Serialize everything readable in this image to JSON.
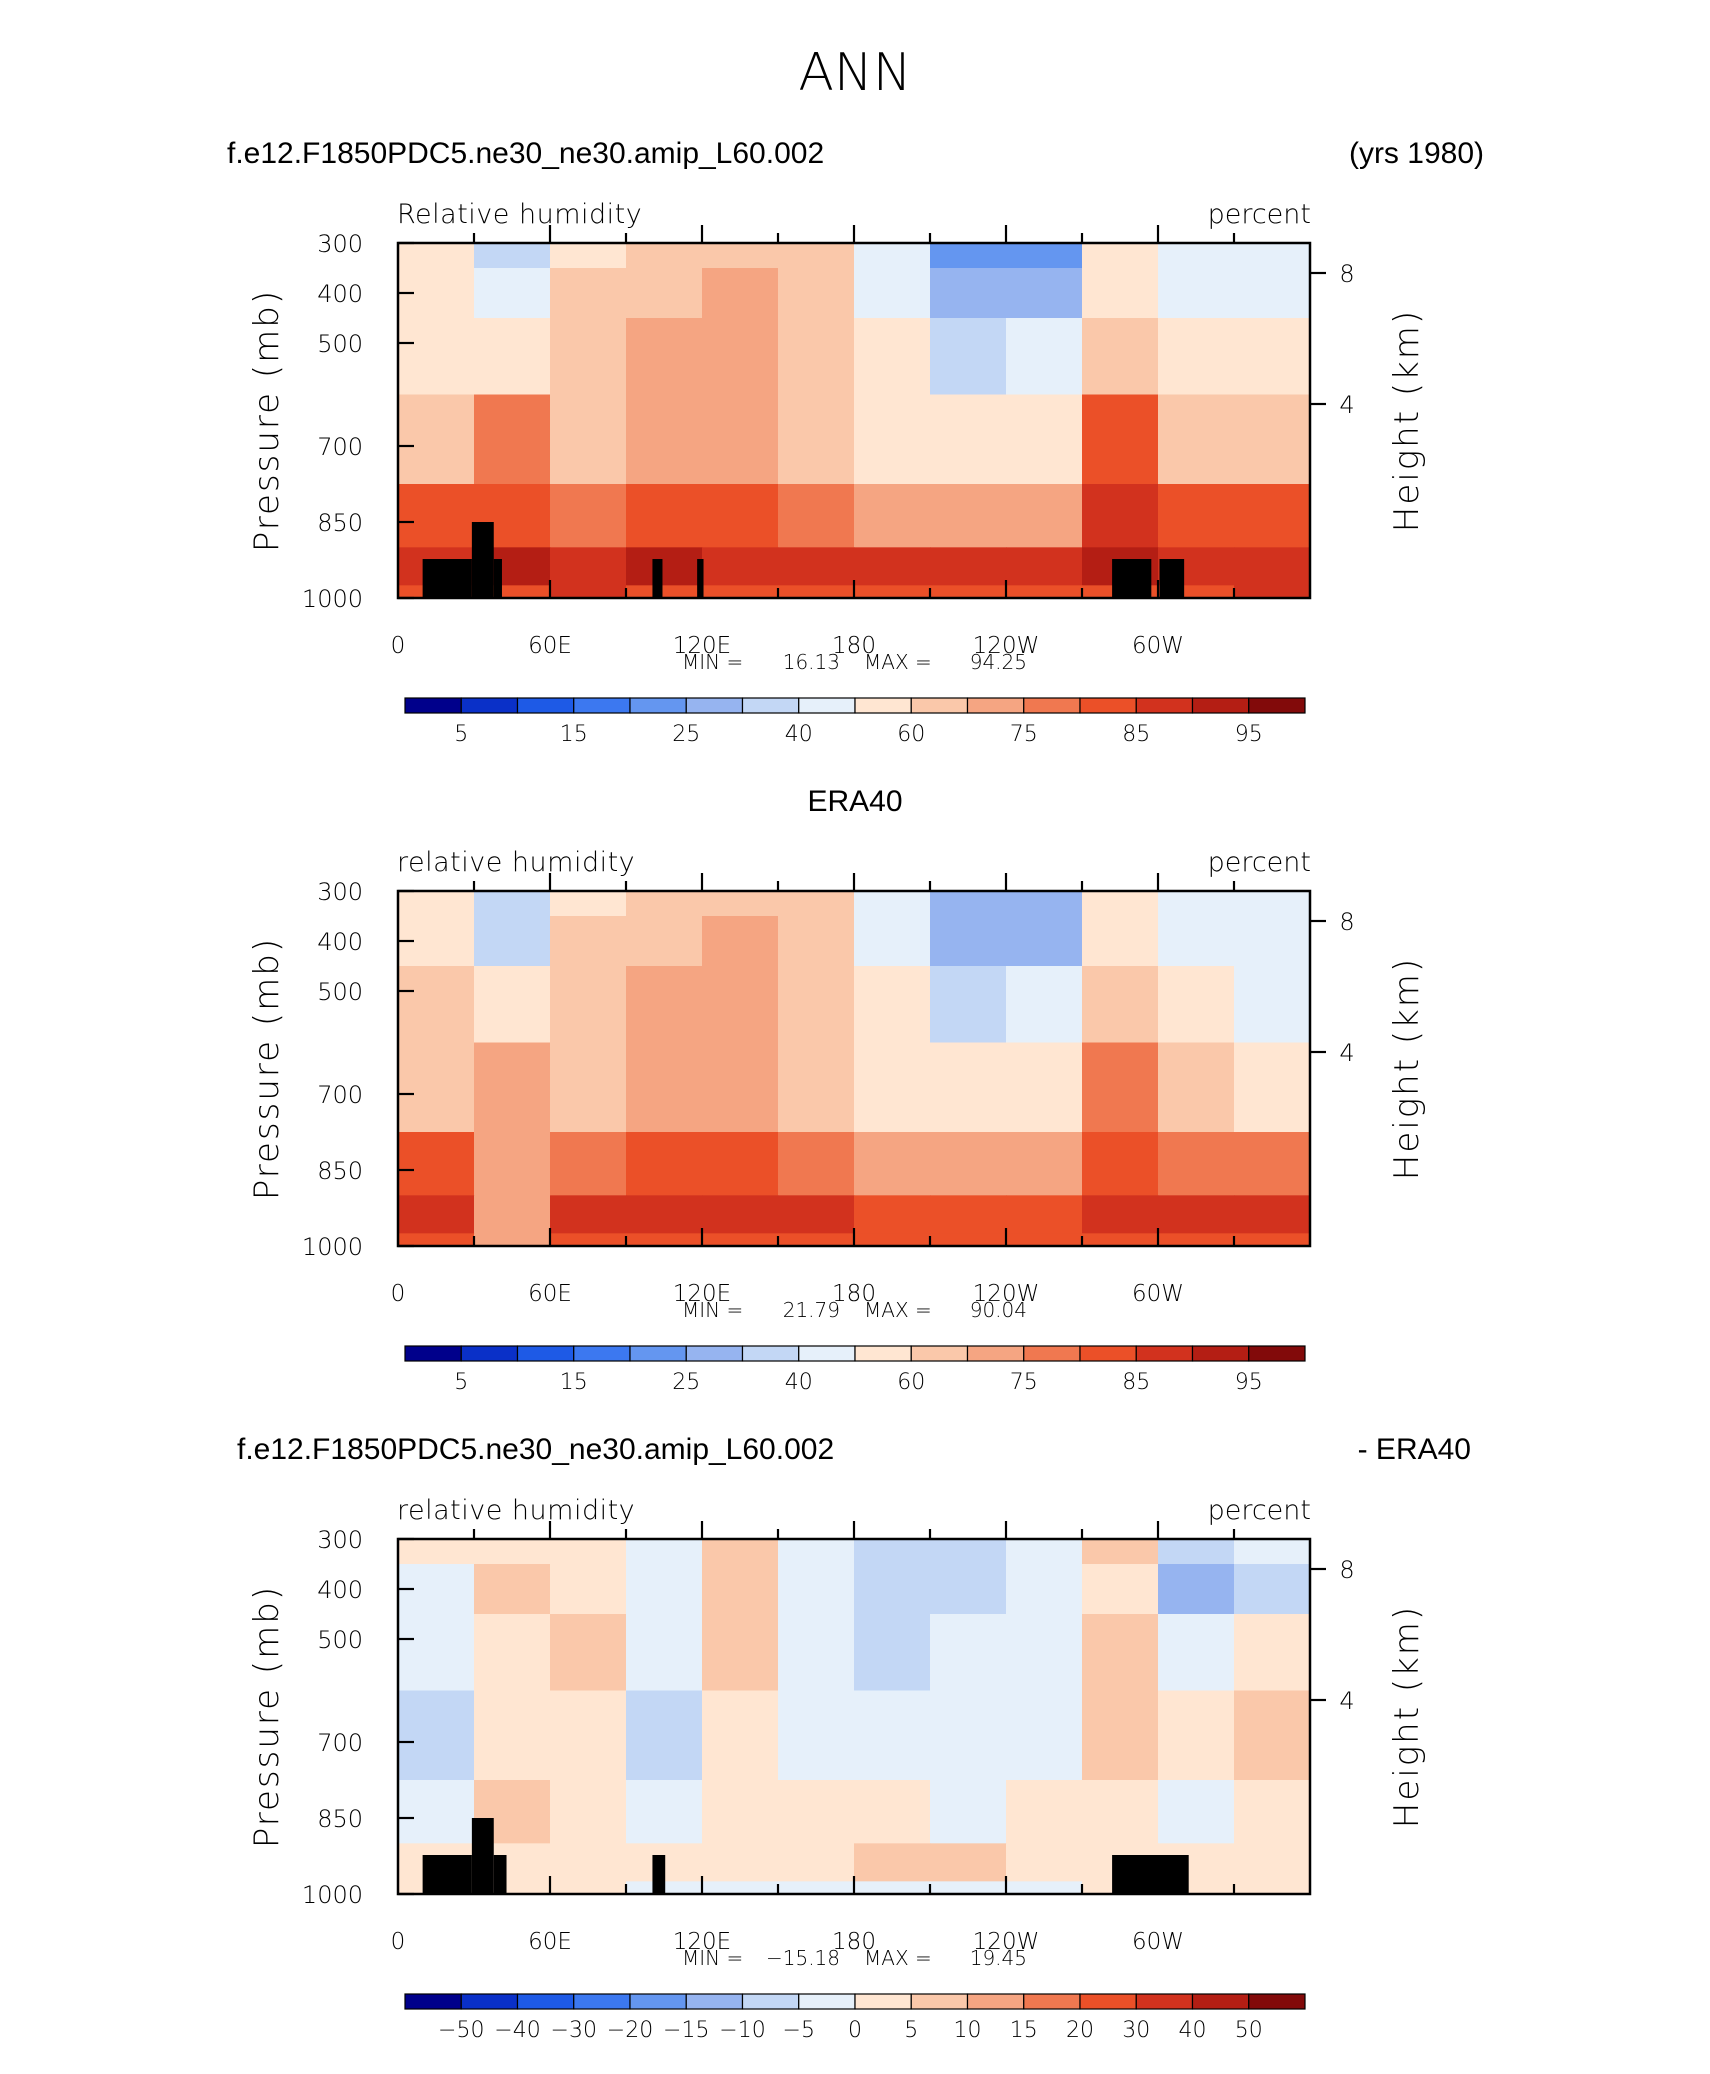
{
  "page_title": "ANN",
  "panels": [
    {
      "id": "model",
      "header_left": "f.e12.F1850PDC5.ne30_ne30.amip_L60.002",
      "header_right": "(yrs 1980)",
      "var_label": "Relative humidity",
      "units": "percent",
      "stats": {
        "min_label": "MIN =",
        "min_value": "16.13",
        "max_label": "MAX =",
        "max_value": "94.25"
      }
    },
    {
      "id": "obs",
      "header_center": "ERA40",
      "var_label": "relative humidity",
      "units": "percent",
      "stats": {
        "min_label": "MIN =",
        "min_value": "21.79",
        "max_label": "MAX =",
        "max_value": "90.04"
      }
    },
    {
      "id": "diff",
      "header_left": "f.e12.F1850PDC5.ne30_ne30.amip_L60.002",
      "header_right": "- ERA40",
      "var_label": "relative humidity",
      "units": "percent",
      "stats": {
        "min_label": "MIN =",
        "min_value": "−15.18",
        "max_label": "MAX =",
        "max_value": "19.45"
      }
    }
  ],
  "axes": {
    "x_ticks": [
      "0",
      "60E",
      "120E",
      "180",
      "120W",
      "60W"
    ],
    "y_left_label": "Pressure (mb)",
    "y_left_ticks": [
      "300",
      "400",
      "500",
      "700",
      "850",
      "1000"
    ],
    "y_right_label": "Height (km)",
    "y_right_ticks": [
      "8",
      "4"
    ]
  },
  "colorbars": {
    "rh": {
      "labels": [
        "5",
        "15",
        "25",
        "40",
        "60",
        "75",
        "85",
        "95"
      ],
      "colors": [
        "#00008B",
        "#0A30C8",
        "#1E5AE6",
        "#3C78F0",
        "#6496F0",
        "#96B4F0",
        "#C3D7F5",
        "#E6F0FA",
        "#FFE6D2",
        "#FAC8AA",
        "#F5A582",
        "#F07850",
        "#EB5028",
        "#D2321E",
        "#B41E14",
        "#820A0A"
      ]
    },
    "diff": {
      "labels": [
        "−50",
        "−40",
        "−30",
        "−20",
        "−15",
        "−10",
        "−5",
        "0",
        "5",
        "10",
        "15",
        "20",
        "30",
        "40",
        "50"
      ],
      "colors": [
        "#00008B",
        "#0A30C8",
        "#1E5AE6",
        "#3C78F0",
        "#6496F0",
        "#96B4F0",
        "#C3D7F5",
        "#E6F0FA",
        "#FFE6D2",
        "#FAC8AA",
        "#F5A582",
        "#F07850",
        "#EB5028",
        "#D2321E",
        "#B41E14",
        "#820A0A"
      ]
    }
  },
  "chart_data": [
    {
      "type": "heatmap",
      "title": "Relative humidity",
      "units": "percent",
      "x": [
        "0",
        "30E",
        "60E",
        "90E",
        "120E",
        "150E",
        "180",
        "150W",
        "120W",
        "90W",
        "60W",
        "30W"
      ],
      "y": [
        300,
        400,
        500,
        700,
        850,
        950,
        1000
      ],
      "z": [
        [
          55,
          35,
          58,
          62,
          66,
          62,
          40,
          20,
          22,
          52,
          45,
          40
        ],
        [
          50,
          42,
          60,
          68,
          72,
          66,
          42,
          26,
          28,
          58,
          48,
          42
        ],
        [
          58,
          55,
          62,
          70,
          74,
          68,
          50,
          38,
          40,
          60,
          58,
          56
        ],
        [
          66,
          76,
          62,
          72,
          72,
          66,
          58,
          52,
          55,
          80,
          66,
          66
        ],
        [
          80,
          82,
          78,
          82,
          80,
          78,
          74,
          72,
          74,
          86,
          80,
          80
        ],
        [
          88,
          90,
          88,
          90,
          88,
          88,
          86,
          86,
          86,
          92,
          88,
          88
        ],
        [
          84,
          84,
          86,
          84,
          84,
          84,
          84,
          84,
          84,
          84,
          84,
          86
        ]
      ],
      "min": 16.13,
      "max": 94.25,
      "ylim": [
        1000,
        300
      ]
    },
    {
      "type": "heatmap",
      "title": "relative humidity",
      "units": "percent",
      "x": [
        "0",
        "30E",
        "60E",
        "90E",
        "120E",
        "150E",
        "180",
        "150W",
        "120W",
        "90W",
        "60W",
        "30W"
      ],
      "y": [
        300,
        400,
        500,
        700,
        850,
        950,
        1000
      ],
      "z": [
        [
          55,
          30,
          58,
          66,
          68,
          64,
          42,
          26,
          28,
          54,
          46,
          42
        ],
        [
          52,
          32,
          60,
          68,
          70,
          66,
          44,
          28,
          28,
          58,
          48,
          40
        ],
        [
          60,
          50,
          62,
          70,
          72,
          68,
          50,
          38,
          40,
          62,
          56,
          44
        ],
        [
          68,
          70,
          62,
          72,
          72,
          66,
          58,
          52,
          55,
          78,
          64,
          58
        ],
        [
          80,
          72,
          78,
          82,
          80,
          78,
          74,
          72,
          74,
          84,
          78,
          76
        ],
        [
          86,
          74,
          88,
          88,
          86,
          86,
          84,
          84,
          84,
          88,
          86,
          86
        ],
        [
          84,
          74,
          84,
          84,
          84,
          84,
          84,
          84,
          84,
          84,
          84,
          84
        ]
      ],
      "min": 21.79,
      "max": 90.04,
      "ylim": [
        1000,
        300
      ]
    },
    {
      "type": "heatmap",
      "title": "relative humidity",
      "units": "percent",
      "x": [
        "0",
        "30E",
        "60E",
        "90E",
        "120E",
        "150E",
        "180",
        "150W",
        "120W",
        "90W",
        "60W",
        "30W"
      ],
      "y": [
        300,
        400,
        500,
        700,
        850,
        950,
        1000
      ],
      "z": [
        [
          2,
          4,
          2,
          -2,
          6,
          -4,
          -6,
          -6,
          -4,
          8,
          -10,
          -4
        ],
        [
          -4,
          8,
          2,
          -2,
          8,
          -2,
          -8,
          -6,
          -2,
          4,
          -12,
          -6
        ],
        [
          -2,
          4,
          8,
          -4,
          6,
          -2,
          -6,
          -4,
          -4,
          6,
          -4,
          4
        ],
        [
          -6,
          4,
          2,
          -8,
          2,
          -4,
          -2,
          -4,
          -2,
          6,
          2,
          6
        ],
        [
          -2,
          6,
          2,
          -4,
          2,
          2,
          2,
          -2,
          2,
          4,
          -2,
          2
        ],
        [
          2,
          4,
          4,
          2,
          2,
          4,
          6,
          6,
          4,
          2,
          2,
          4
        ],
        [
          0,
          2,
          2,
          -2,
          -2,
          -2,
          -2,
          -2,
          -2,
          2,
          0,
          0
        ]
      ],
      "min": -15.18,
      "max": 19.45,
      "ylim": [
        1000,
        300
      ]
    }
  ]
}
